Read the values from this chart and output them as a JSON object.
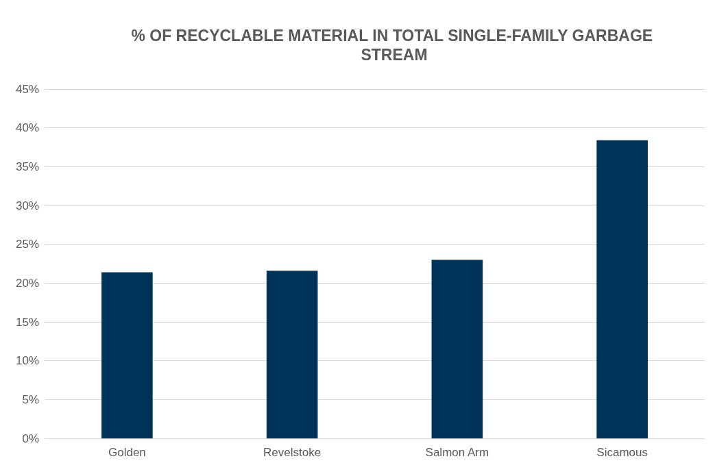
{
  "chart_data": {
    "type": "bar",
    "title": "% OF RECYCLABLE MATERIAL IN TOTAL SINGLE-FAMILY GARBAGE STREAM",
    "categories": [
      "Golden",
      "Revelstoke",
      "Salmon Arm",
      "Sicamous"
    ],
    "values": [
      21.4,
      21.6,
      23.0,
      38.4
    ],
    "color": "#003359",
    "ylim": [
      0,
      45
    ],
    "yticks": [
      {
        "value": 0,
        "label": "0%"
      },
      {
        "value": 5,
        "label": "5%"
      },
      {
        "value": 10,
        "label": "10%"
      },
      {
        "value": 15,
        "label": "15%"
      },
      {
        "value": 20,
        "label": "20%"
      },
      {
        "value": 25,
        "label": "25%"
      },
      {
        "value": 30,
        "label": "30%"
      },
      {
        "value": 35,
        "label": "35%"
      },
      {
        "value": 40,
        "label": "40%"
      },
      {
        "value": 45,
        "label": "45%"
      }
    ],
    "grid": true
  }
}
